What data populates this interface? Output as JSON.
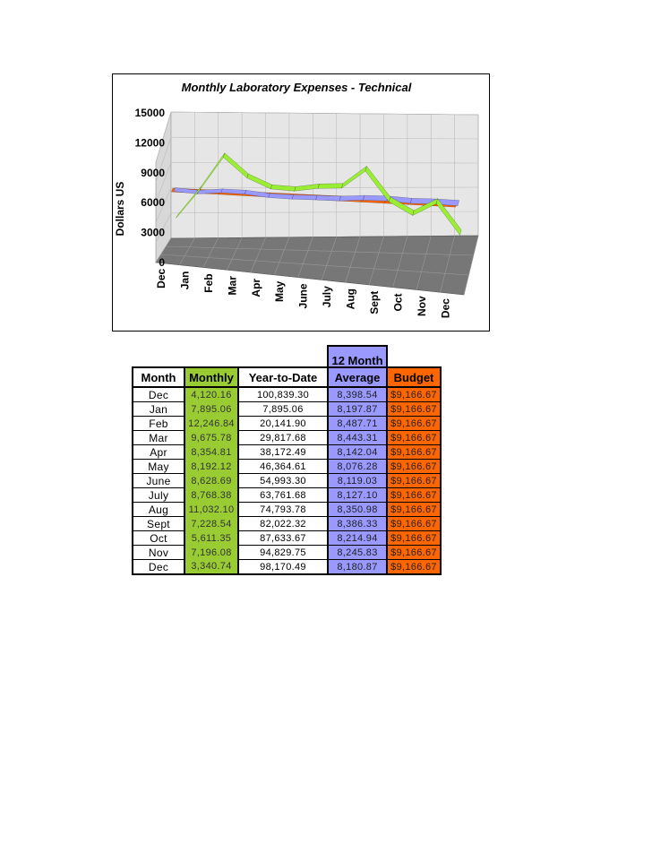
{
  "chart_data": {
    "type": "line",
    "title": "Monthly Laboratory Expenses - Technical",
    "xlabel": "",
    "ylabel": "Dollars US",
    "ylim": [
      0,
      15000
    ],
    "yticks": [
      "0",
      "3000",
      "6000",
      "9000",
      "12000",
      "15000"
    ],
    "categories": [
      "Dec",
      "Jan",
      "Feb",
      "Mar",
      "Apr",
      "May",
      "June",
      "July",
      "Aug",
      "Sept",
      "Oct",
      "Nov",
      "Dec"
    ],
    "series": [
      {
        "name": "Monthly",
        "color": "#99ee33",
        "values": [
          4120.16,
          7895.06,
          12246.84,
          9675.78,
          8354.81,
          8192.12,
          8628.69,
          8768.38,
          11032.1,
          7228.54,
          5611.35,
          7196.08,
          3340.74
        ]
      },
      {
        "name": "12 Month Average",
        "color": "#9999ff",
        "values": [
          8398.54,
          8197.87,
          8487.71,
          8443.31,
          8142.04,
          8076.28,
          8119.03,
          8127.1,
          8350.98,
          8386.33,
          8214.94,
          8245.83,
          8180.87
        ]
      },
      {
        "name": "Budget",
        "color": "#ff6600",
        "values": [
          9166.67,
          9166.67,
          9166.67,
          9166.67,
          9166.67,
          9166.67,
          9166.67,
          9166.67,
          9166.67,
          9166.67,
          9166.67,
          9166.67,
          9166.67
        ]
      }
    ],
    "grid": true,
    "legend": "none"
  },
  "table": {
    "header_top": {
      "avg": "12 Month"
    },
    "headers": {
      "month": "Month",
      "monthly": "Monthly",
      "ytd": "Year-to-Date",
      "avg": "Average",
      "budget": "Budget"
    },
    "rows": [
      {
        "month": "Dec",
        "monthly": "4,120.16",
        "ytd": "100,839.30",
        "avg": "8,398.54",
        "budget": "$9,166.67"
      },
      {
        "month": "Jan",
        "monthly": "7,895.06",
        "ytd": "7,895.06",
        "avg": "8,197.87",
        "budget": "$9,166.67"
      },
      {
        "month": "Feb",
        "monthly": "12,246.84",
        "ytd": "20,141.90",
        "avg": "8,487.71",
        "budget": "$9,166.67"
      },
      {
        "month": "Mar",
        "monthly": "9,675.78",
        "ytd": "29,817.68",
        "avg": "8,443.31",
        "budget": "$9,166.67"
      },
      {
        "month": "Apr",
        "monthly": "8,354.81",
        "ytd": "38,172.49",
        "avg": "8,142.04",
        "budget": "$9,166.67"
      },
      {
        "month": "May",
        "monthly": "8,192.12",
        "ytd": "46,364.61",
        "avg": "8,076.28",
        "budget": "$9,166.67"
      },
      {
        "month": "June",
        "monthly": "8,628.69",
        "ytd": "54,993.30",
        "avg": "8,119.03",
        "budget": "$9,166.67"
      },
      {
        "month": "July",
        "monthly": "8,768.38",
        "ytd": "63,761.68",
        "avg": "8,127.10",
        "budget": "$9,166.67"
      },
      {
        "month": "Aug",
        "monthly": "11,032.10",
        "ytd": "74,793.78",
        "avg": "8,350.98",
        "budget": "$9,166.67"
      },
      {
        "month": "Sept",
        "monthly": "7,228.54",
        "ytd": "82,022.32",
        "avg": "8,386.33",
        "budget": "$9,166.67"
      },
      {
        "month": "Oct",
        "monthly": "5,611.35",
        "ytd": "87,633.67",
        "avg": "8,214.94",
        "budget": "$9,166.67"
      },
      {
        "month": "Nov",
        "monthly": "7,196.08",
        "ytd": "94,829.75",
        "avg": "8,245.83",
        "budget": "$9,166.67"
      },
      {
        "month": "Dec",
        "monthly": "3,340.74",
        "ytd": "98,170.49",
        "avg": "8,180.87",
        "budget": "$9,166.67"
      }
    ]
  }
}
